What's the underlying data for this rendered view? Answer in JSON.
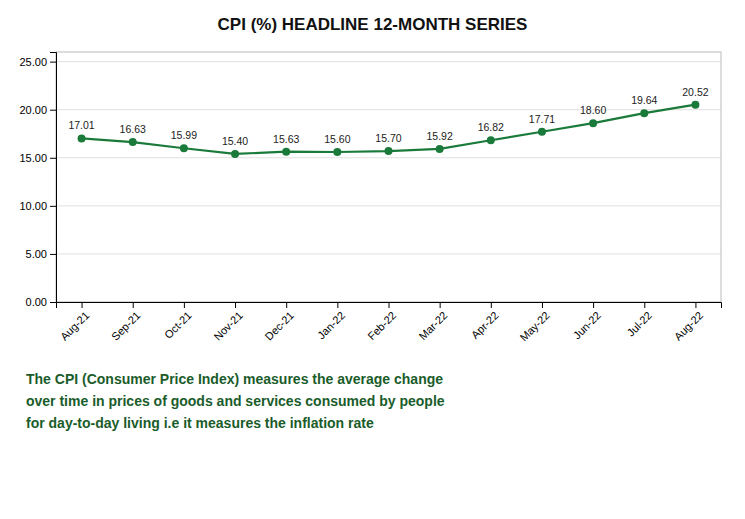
{
  "chart_data": {
    "type": "line",
    "title": "CPI (%)  HEADLINE 12-MONTH SERIES",
    "categories": [
      "Aug-21",
      "Sep-21",
      "Oct-21",
      "Nov-21",
      "Dec-21",
      "Jan-22",
      "Feb-22",
      "Mar-22",
      "Apr-22",
      "May-22",
      "Jun-22",
      "Jul-22",
      "Aug-22"
    ],
    "values": [
      17.01,
      16.63,
      15.99,
      15.4,
      15.63,
      15.6,
      15.7,
      15.92,
      16.82,
      17.71,
      18.6,
      19.64,
      20.52
    ],
    "value_labels": [
      "17.01",
      "16.63",
      "15.99",
      "15.40",
      "15.63",
      "15.60",
      "15.70",
      "15.92",
      "16.82",
      "17.71",
      "18.60",
      "19.64",
      "20.52"
    ],
    "color": "#1a7a3a",
    "marker": "circle",
    "data_labels": true,
    "ylim": [
      0,
      26
    ],
    "yticks": [
      {
        "value": 0,
        "label": "0.00"
      },
      {
        "value": 5,
        "label": "5.00"
      },
      {
        "value": 10,
        "label": "10.00"
      },
      {
        "value": 15,
        "label": "15.00"
      },
      {
        "value": 20,
        "label": "20.00"
      },
      {
        "value": 25,
        "label": "25.00"
      }
    ],
    "grid": true,
    "annotations": [
      "The CPI (Consumer Price Index) measures the average change",
      "over time in prices of goods and services consumed by people",
      "for day-to-day living i.e it measures the inflation rate"
    ]
  }
}
